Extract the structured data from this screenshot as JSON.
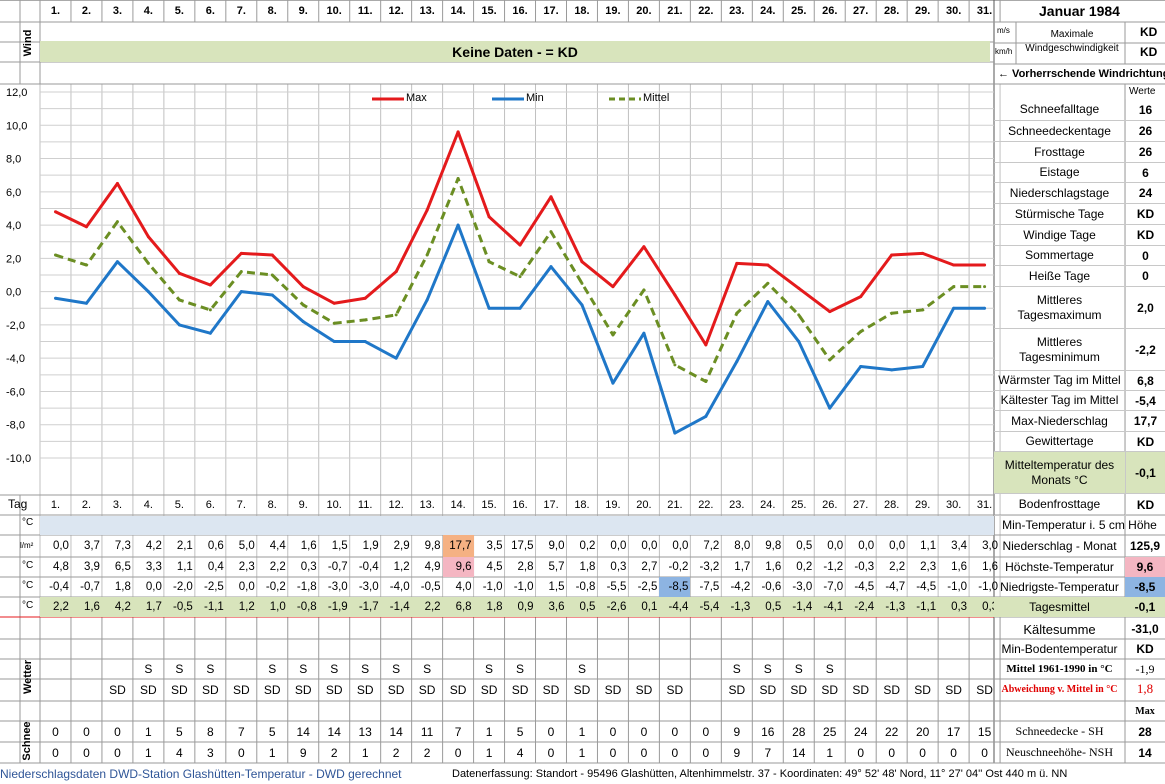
{
  "title": "Januar 1984",
  "wind": {
    "label": "Wind",
    "no_data": "Keine Daten -  = KD",
    "unit_ms": "m/s",
    "unit_kmh": "km/h",
    "max_label": "Maximale Windgeschwindigkeit",
    "max_ms": "KD",
    "max_kmh": "KD",
    "prevailing": "← Vorherrschende Windrichtung"
  },
  "days": [
    "1.",
    "2.",
    "3.",
    "4.",
    "5.",
    "6.",
    "7.",
    "8.",
    "9.",
    "10.",
    "11.",
    "12.",
    "13.",
    "14.",
    "15.",
    "16.",
    "17.",
    "18.",
    "19.",
    "20.",
    "21.",
    "22.",
    "23.",
    "24.",
    "25.",
    "26.",
    "27.",
    "28.",
    "29.",
    "30.",
    "31."
  ],
  "chart_data": {
    "type": "line",
    "x": [
      1,
      2,
      3,
      4,
      5,
      6,
      7,
      8,
      9,
      10,
      11,
      12,
      13,
      14,
      15,
      16,
      17,
      18,
      19,
      20,
      21,
      22,
      23,
      24,
      25,
      26,
      27,
      28,
      29,
      30,
      31
    ],
    "ylim": [
      -10,
      12
    ],
    "yticks": [
      "12,0",
      "10,0",
      "8,0",
      "6,0",
      "4,0",
      "2,0",
      "0,0",
      "-2,0",
      "-4,0",
      "-6,0",
      "-8,0",
      "-10,0"
    ],
    "grid": true,
    "legend_position": "top",
    "series": [
      {
        "name": "Max",
        "color": "#e41a1c",
        "style": "solid",
        "values": [
          4.8,
          3.9,
          6.5,
          3.3,
          1.1,
          0.4,
          2.3,
          2.2,
          0.3,
          -0.7,
          -0.4,
          1.2,
          4.9,
          9.6,
          4.5,
          2.8,
          5.7,
          1.8,
          0.3,
          2.7,
          -0.2,
          -3.2,
          1.7,
          1.6,
          0.2,
          -1.2,
          -0.3,
          2.2,
          2.3,
          1.6,
          1.6
        ]
      },
      {
        "name": "Min",
        "color": "#1f77c8",
        "style": "solid",
        "values": [
          -0.4,
          -0.7,
          1.8,
          0.0,
          -2.0,
          -2.5,
          0.0,
          -0.2,
          -1.8,
          -3.0,
          -3.0,
          -4.0,
          -0.5,
          4.0,
          -1.0,
          -1.0,
          1.5,
          -0.8,
          -5.5,
          -2.5,
          -8.5,
          -7.5,
          -4.2,
          -0.6,
          -3.0,
          -7.0,
          -4.5,
          -4.7,
          -4.5,
          -1.0,
          -1.0
        ]
      },
      {
        "name": "Mittel",
        "color": "#6b8e23",
        "style": "dashed",
        "values": [
          2.2,
          1.6,
          4.2,
          1.7,
          -0.5,
          -1.1,
          1.2,
          1.0,
          -0.8,
          -1.9,
          -1.7,
          -1.4,
          2.2,
          6.8,
          1.8,
          0.9,
          3.6,
          0.5,
          -2.6,
          0.1,
          -4.4,
          -5.4,
          -1.3,
          0.5,
          -1.4,
          -4.1,
          -2.4,
          -1.3,
          -1.1,
          0.3,
          0.3
        ]
      }
    ]
  },
  "table": {
    "tag_label": "Tag",
    "unit_c": "°C",
    "unit_lm2": "l/m²",
    "empty_label": "Min-Temperatur i. 5 cm Höhe",
    "niederschlag": [
      "0,0",
      "3,7",
      "7,3",
      "4,2",
      "2,1",
      "0,6",
      "5,0",
      "4,4",
      "1,6",
      "1,5",
      "1,9",
      "2,9",
      "9,8",
      "17,7",
      "3,5",
      "17,5",
      "9,0",
      "0,2",
      "0,0",
      "0,0",
      "0,0",
      "7,2",
      "8,0",
      "9,8",
      "0,5",
      "0,0",
      "0,0",
      "0,0",
      "1,1",
      "3,4",
      "3,0"
    ],
    "max": [
      "4,8",
      "3,9",
      "6,5",
      "3,3",
      "1,1",
      "0,4",
      "2,3",
      "2,2",
      "0,3",
      "-0,7",
      "-0,4",
      "1,2",
      "4,9",
      "9,6",
      "4,5",
      "2,8",
      "5,7",
      "1,8",
      "0,3",
      "2,7",
      "-0,2",
      "-3,2",
      "1,7",
      "1,6",
      "0,2",
      "-1,2",
      "-0,3",
      "2,2",
      "2,3",
      "1,6",
      "1,6"
    ],
    "min": [
      "-0,4",
      "-0,7",
      "1,8",
      "0,0",
      "-2,0",
      "-2,5",
      "0,0",
      "-0,2",
      "-1,8",
      "-3,0",
      "-3,0",
      "-4,0",
      "-0,5",
      "4,0",
      "-1,0",
      "-1,0",
      "1,5",
      "-0,8",
      "-5,5",
      "-2,5",
      "-8,5",
      "-7,5",
      "-4,2",
      "-0,6",
      "-3,0",
      "-7,0",
      "-4,5",
      "-4,7",
      "-4,5",
      "-1,0",
      "-1,0"
    ],
    "mittel": [
      "2,2",
      "1,6",
      "4,2",
      "1,7",
      "-0,5",
      "-1,1",
      "1,2",
      "1,0",
      "-0,8",
      "-1,9",
      "-1,7",
      "-1,4",
      "2,2",
      "6,8",
      "1,8",
      "0,9",
      "3,6",
      "0,5",
      "-2,6",
      "0,1",
      "-4,4",
      "-5,4",
      "-1,3",
      "0,5",
      "-1,4",
      "-4,1",
      "-2,4",
      "-1,3",
      "-1,1",
      "0,3",
      "0,3"
    ],
    "row_labels": {
      "niederschlag": "Niederschlag - Monat",
      "max": "Höchste-Temperatur",
      "min": "Niedrigste-Temperatur",
      "mittel": "Tagesmittel"
    },
    "row_totals": {
      "niederschlag": "125,9",
      "max": "9,6",
      "min": "-8,5",
      "mittel": "-0,1"
    }
  },
  "wetter": {
    "label": "Wetter",
    "row_s": [
      "",
      "",
      "",
      "S",
      "S",
      "S",
      "",
      "S",
      "S",
      "S",
      "S",
      "S",
      "S",
      "",
      "S",
      "S",
      "",
      "S",
      "",
      "",
      "",
      "",
      "S",
      "S",
      "S",
      "S",
      "",
      "",
      "",
      "",
      ""
    ],
    "row_sd": [
      "",
      "",
      "SD",
      "SD",
      "SD",
      "SD",
      "SD",
      "SD",
      "SD",
      "SD",
      "SD",
      "SD",
      "SD",
      "SD",
      "SD",
      "SD",
      "SD",
      "SD",
      "SD",
      "SD",
      "SD",
      "",
      "SD",
      "SD",
      "SD",
      "SD",
      "SD",
      "SD",
      "SD",
      "SD",
      "SD"
    ]
  },
  "schnee": {
    "label": "Schnee",
    "sh": [
      "0",
      "0",
      "0",
      "1",
      "5",
      "8",
      "7",
      "5",
      "14",
      "14",
      "13",
      "14",
      "11",
      "7",
      "1",
      "5",
      "0",
      "1",
      "0",
      "0",
      "0",
      "0",
      "9",
      "16",
      "28",
      "25",
      "24",
      "22",
      "20",
      "17",
      "15"
    ],
    "nsh": [
      "0",
      "0",
      "0",
      "1",
      "4",
      "3",
      "0",
      "1",
      "9",
      "2",
      "1",
      "2",
      "2",
      "0",
      "1",
      "4",
      "0",
      "1",
      "0",
      "0",
      "0",
      "0",
      "9",
      "7",
      "14",
      "1",
      "0",
      "0",
      "0",
      "0",
      "0"
    ],
    "sh_label": "Schneedecke -  SH",
    "sh_max": "28",
    "nsh_label": "Neuschneehöhe- NSH",
    "nsh_max": "14",
    "max_header": "Max"
  },
  "stats": {
    "werte_header": "Werte",
    "items": [
      {
        "label": "Schneefalltage",
        "value": "16"
      },
      {
        "label": "Schneedeckentage",
        "value": "26"
      },
      {
        "label": "Frosttage",
        "value": "26"
      },
      {
        "label": "Eistage",
        "value": "6"
      },
      {
        "label": "Niederschlagstage",
        "value": "24"
      },
      {
        "label": "Stürmische Tage",
        "value": "KD"
      },
      {
        "label": "Windige Tage",
        "value": "KD"
      },
      {
        "label": "Sommertage",
        "value": "0"
      },
      {
        "label": "Heiße Tage",
        "value": "0"
      },
      {
        "label": "Mittleres Tagesmaximum",
        "value": "2,0"
      },
      {
        "label": "Mittleres Tagesminimum",
        "value": "-2,2"
      },
      {
        "label": "Wärmster Tag im Mittel",
        "value": "6,8"
      },
      {
        "label": "Kältester Tag im Mittel",
        "value": "-5,4"
      },
      {
        "label": "Max-Niederschlag",
        "value": "17,7"
      },
      {
        "label": "Gewittertage",
        "value": "KD"
      },
      {
        "label": "Mitteltemperatur des Monats °C",
        "value": "-0,1"
      },
      {
        "label": "Bodenfrosttage",
        "value": "KD"
      }
    ],
    "kaeltesumme_label": "Kältesumme",
    "kaeltesumme": "-31,0",
    "min_boden_label": "Min-Bodentemperatur",
    "min_boden": "KD",
    "mittel_6190_label": "Mittel 1961-1990 in °C",
    "mittel_6190": "-1,9",
    "abweichung_label": "Abweichung v. Mittel in °C",
    "abweichung": "1,8"
  },
  "footer": {
    "left": "Niederschlagsdaten DWD-Station Glashütten-Temperatur -  DWD gerechnet",
    "right": "Datenerfassung: Standort -  95496  Glashütten, Altenhimmelstr. 37 - Koordinaten: 49° 52' 48' Nord,  11° 27' 04'' Ost  440 m ü. NN"
  }
}
